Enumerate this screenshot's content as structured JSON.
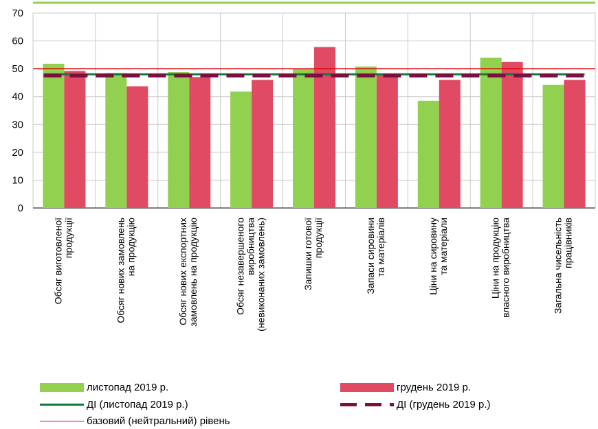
{
  "colors": {
    "series_nov": "#92d050",
    "series_dec": "#e04a63",
    "di_nov": "#0e7a3b",
    "di_dec": "#7b1040",
    "baseline": "#e00000",
    "grid": "#c8c8c8",
    "top_border": "#92d050"
  },
  "chart_data": {
    "type": "bar",
    "ylim": [
      0,
      70
    ],
    "yticks": [
      0,
      10,
      20,
      30,
      40,
      50,
      60,
      70
    ],
    "categories": [
      [
        "Обсяг виготовленої",
        "продукції"
      ],
      [
        "Обсяг нових замовлень",
        "на продукцію"
      ],
      [
        "Обсяг нових експортних",
        "замовлень на продукцію"
      ],
      [
        "Обсяг незавершеного",
        "виробництва",
        "(невиконаних замовлень)"
      ],
      [
        "Запишки готової",
        "продукції"
      ],
      [
        "Запаси сировини",
        "та матеріалів"
      ],
      [
        "Ціни на сировину",
        "та матеріали"
      ],
      [
        "Ціни на продукцію",
        "власного виробництва"
      ],
      [
        "Загальна чисельність",
        "працівників"
      ]
    ],
    "series": [
      {
        "name": "листопад 2019 р.",
        "values": [
          51.8,
          48.5,
          48.8,
          41.8,
          50.0,
          50.8,
          38.5,
          54.0,
          44.2
        ]
      },
      {
        "name": "грудень 2019 р.",
        "values": [
          49.2,
          43.7,
          47.0,
          46.0,
          57.8,
          47.8,
          46.0,
          52.5,
          46.0
        ]
      }
    ],
    "lines": [
      {
        "name": "ДІ (листопад 2019 р.)",
        "value": 48.0
      },
      {
        "name": "ДІ (грудень 2019 р.)",
        "value": 47.5
      },
      {
        "name": "базовий (нейтральний) рівень",
        "value": 50
      }
    ]
  },
  "legend": {
    "nov": "листопад 2019 р.",
    "dec": "грудень 2019 р.",
    "di_nov": "ДІ (листопад 2019 р.)",
    "di_dec": "ДІ (грудень 2019 р.)",
    "baseline": "базовий (нейтральний) рівень"
  }
}
